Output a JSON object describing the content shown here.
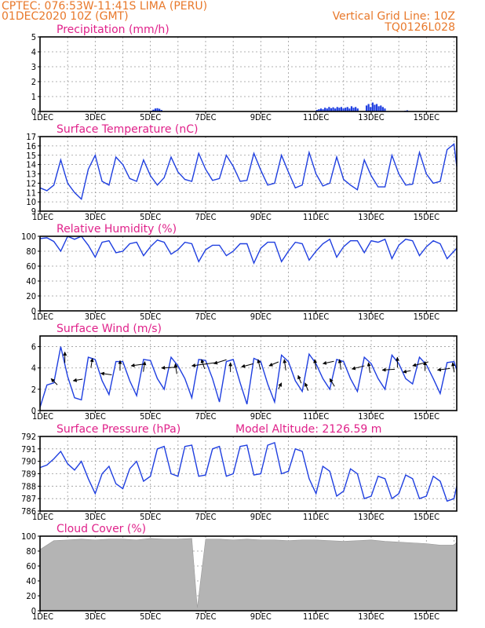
{
  "header": {
    "line1": "CPTEC:   076:53W-11:41S   LIMA (PERU)",
    "line2": "01DEC2020 10Z (GMT)",
    "right1": "Vertical Grid Line: 10Z",
    "right2": "TQ0126L028"
  },
  "colors": {
    "header": "#e8782a",
    "title": "#e0218a",
    "series": "#1f3fe0",
    "cloud": "#b4b4b4"
  },
  "x_ticks": [
    "1DEC",
    "3DEC",
    "5DEC",
    "7DEC",
    "9DEC",
    "11DEC",
    "13DEC",
    "15DEC"
  ],
  "chart_data": [
    {
      "id": "precip",
      "type": "bar",
      "title": "Precipitation (mm/h)",
      "ylim": [
        0,
        5
      ],
      "yticks": [
        0,
        1,
        2,
        3,
        4,
        5
      ],
      "x_start_day": 1,
      "x_end_day": 16.1,
      "events": [
        {
          "day": 5.0,
          "values": [
            0.05,
            0.12,
            0.2,
            0.22,
            0.18,
            0.1
          ]
        },
        {
          "day": 11.0,
          "values": [
            0.1,
            0.15,
            0.2,
            0.15,
            0.25,
            0.2,
            0.3,
            0.22,
            0.28,
            0.2,
            0.3,
            0.25,
            0.3,
            0.2,
            0.25,
            0.3,
            0.2,
            0.35,
            0.25,
            0.3,
            0.2
          ]
        },
        {
          "day": 12.8,
          "values": [
            0.4,
            0.5,
            0.3,
            0.6,
            0.45,
            0.5,
            0.35,
            0.4,
            0.3,
            0.2
          ]
        },
        {
          "day": 14.2,
          "values": [
            0.05,
            0.08
          ]
        }
      ]
    },
    {
      "id": "temp",
      "type": "line",
      "title": "Surface Temperature (nC)",
      "ylim": [
        9,
        17
      ],
      "yticks": [
        9,
        10,
        11,
        12,
        13,
        14,
        15,
        16,
        17
      ],
      "days": [
        1,
        1.25,
        1.5,
        1.75,
        2,
        2.25,
        2.5,
        2.75,
        3,
        3.25,
        3.5,
        3.75,
        4,
        4.25,
        4.5,
        4.75,
        5,
        5.25,
        5.5,
        5.75,
        6,
        6.25,
        6.5,
        6.75,
        7,
        7.25,
        7.5,
        7.75,
        8,
        8.25,
        8.5,
        8.75,
        9,
        9.25,
        9.5,
        9.75,
        10,
        10.25,
        10.5,
        10.75,
        11,
        11.25,
        11.5,
        11.75,
        12,
        12.25,
        12.5,
        12.75,
        13,
        13.25,
        13.5,
        13.75,
        14,
        14.25,
        14.5,
        14.75,
        15,
        15.25,
        15.5,
        15.75,
        16,
        16.1
      ],
      "values": [
        11.5,
        11.2,
        11.8,
        14.5,
        12.0,
        11.0,
        10.3,
        13.5,
        15.0,
        12.2,
        11.8,
        14.8,
        14.0,
        12.5,
        12.2,
        14.5,
        12.8,
        11.8,
        12.6,
        14.8,
        13.2,
        12.4,
        12.2,
        15.2,
        13.5,
        12.3,
        12.5,
        15.0,
        13.8,
        12.2,
        12.3,
        15.2,
        13.4,
        11.8,
        12.0,
        15.0,
        13.2,
        11.5,
        11.8,
        15.3,
        13.0,
        11.7,
        12.0,
        14.8,
        12.4,
        11.8,
        11.3,
        14.5,
        12.8,
        11.6,
        11.6,
        15.0,
        13.0,
        11.8,
        11.9,
        15.3,
        13.0,
        12.0,
        12.2,
        15.6,
        16.2,
        13.8
      ]
    },
    {
      "id": "rh",
      "type": "line",
      "title": "Relative Humidity (%)",
      "ylim": [
        0,
        100
      ],
      "yticks": [
        0,
        20,
        40,
        60,
        80,
        100
      ],
      "days": [
        1,
        1.25,
        1.5,
        1.75,
        2,
        2.25,
        2.5,
        2.75,
        3,
        3.25,
        3.5,
        3.75,
        4,
        4.25,
        4.5,
        4.75,
        5,
        5.25,
        5.5,
        5.75,
        6,
        6.25,
        6.5,
        6.75,
        7,
        7.25,
        7.5,
        7.75,
        8,
        8.25,
        8.5,
        8.75,
        9,
        9.25,
        9.5,
        9.75,
        10,
        10.25,
        10.5,
        10.75,
        11,
        11.25,
        11.5,
        11.75,
        12,
        12.25,
        12.5,
        12.75,
        13,
        13.25,
        13.5,
        13.75,
        14,
        14.25,
        14.5,
        14.75,
        15,
        15.25,
        15.5,
        15.75,
        16,
        16.1
      ],
      "values": [
        97,
        98,
        93,
        80,
        100,
        96,
        100,
        88,
        72,
        92,
        94,
        78,
        80,
        90,
        92,
        74,
        86,
        95,
        92,
        76,
        82,
        92,
        90,
        66,
        82,
        88,
        88,
        74,
        80,
        90,
        90,
        64,
        84,
        92,
        92,
        66,
        80,
        92,
        90,
        68,
        80,
        90,
        96,
        72,
        86,
        94,
        94,
        78,
        94,
        92,
        96,
        70,
        88,
        96,
        94,
        74,
        86,
        94,
        90,
        70,
        80,
        84
      ]
    },
    {
      "id": "wind",
      "type": "line",
      "title": "Surface Wind (m/s)",
      "ylim": [
        0,
        7
      ],
      "yticks": [
        0,
        2,
        4,
        6
      ],
      "days": [
        1,
        1.25,
        1.5,
        1.75,
        2,
        2.25,
        2.5,
        2.75,
        3,
        3.25,
        3.5,
        3.75,
        4,
        4.25,
        4.5,
        4.75,
        5,
        5.25,
        5.5,
        5.75,
        6,
        6.25,
        6.5,
        6.75,
        7,
        7.25,
        7.5,
        7.75,
        8,
        8.25,
        8.5,
        8.75,
        9,
        9.25,
        9.5,
        9.75,
        10,
        10.25,
        10.5,
        10.75,
        11,
        11.25,
        11.5,
        11.75,
        12,
        12.25,
        12.5,
        12.75,
        13,
        13.25,
        13.5,
        13.75,
        14,
        14.25,
        14.5,
        14.75,
        15,
        15.25,
        15.5,
        15.75,
        16,
        16.1
      ],
      "values": [
        0.3,
        2.4,
        2.6,
        6.0,
        3.2,
        1.2,
        1.0,
        5.0,
        4.8,
        2.8,
        1.5,
        4.6,
        4.6,
        2.8,
        1.4,
        4.8,
        4.7,
        3.0,
        2.0,
        5.0,
        4.2,
        3.0,
        1.2,
        4.8,
        4.7,
        3.0,
        0.8,
        4.6,
        4.8,
        2.6,
        0.6,
        4.9,
        4.6,
        2.5,
        0.8,
        5.2,
        4.6,
        2.8,
        1.8,
        5.3,
        4.4,
        3.0,
        2.0,
        4.8,
        4.6,
        3.0,
        1.8,
        5.0,
        4.4,
        3.0,
        2.0,
        5.2,
        4.4,
        3.0,
        2.5,
        5.0,
        4.3,
        3.0,
        1.6,
        4.5,
        4.6,
        3.8
      ],
      "arrows": [
        {
          "day": 1.4,
          "speed": 3.0,
          "dx": 8,
          "dy": -8
        },
        {
          "day": 1.9,
          "speed": 5.5,
          "dx": 0,
          "dy": -14
        },
        {
          "day": 2.2,
          "speed": 2.8,
          "dx": 12,
          "dy": 2
        },
        {
          "day": 2.9,
          "speed": 4.9,
          "dx": -2,
          "dy": -12
        },
        {
          "day": 3.2,
          "speed": 3.5,
          "dx": 14,
          "dy": -2
        },
        {
          "day": 3.9,
          "speed": 4.7,
          "dx": 0,
          "dy": -13
        },
        {
          "day": 4.3,
          "speed": 4.2,
          "dx": 15,
          "dy": 2
        },
        {
          "day": 4.8,
          "speed": 4.6,
          "dx": -2,
          "dy": -13
        },
        {
          "day": 5.4,
          "speed": 4.0,
          "dx": 20,
          "dy": 1
        },
        {
          "day": 5.9,
          "speed": 4.4,
          "dx": 2,
          "dy": -13
        },
        {
          "day": 6.5,
          "speed": 4.2,
          "dx": 30,
          "dy": 4
        },
        {
          "day": 6.85,
          "speed": 4.8,
          "dx": 4,
          "dy": -12
        },
        {
          "day": 7.3,
          "speed": 4.4,
          "dx": 16,
          "dy": 5
        },
        {
          "day": 7.9,
          "speed": 4.5,
          "dx": 0,
          "dy": -12
        },
        {
          "day": 8.3,
          "speed": 4.1,
          "dx": 15,
          "dy": 4
        },
        {
          "day": 8.9,
          "speed": 4.8,
          "dx": 3,
          "dy": -13
        },
        {
          "day": 9.3,
          "speed": 4.2,
          "dx": 12,
          "dy": 5
        },
        {
          "day": 9.75,
          "speed": 2.6,
          "dx": -4,
          "dy": -8
        },
        {
          "day": 9.85,
          "speed": 4.8,
          "dx": 2,
          "dy": -14
        },
        {
          "day": 10.35,
          "speed": 3.3,
          "dx": 4,
          "dy": -10
        },
        {
          "day": 10.6,
          "speed": 2.6,
          "dx": 4,
          "dy": -10
        },
        {
          "day": 10.95,
          "speed": 4.8,
          "dx": 2,
          "dy": -13
        },
        {
          "day": 11.25,
          "speed": 4.4,
          "dx": 14,
          "dy": 3
        },
        {
          "day": 11.5,
          "speed": 3.0,
          "dx": 6,
          "dy": -10
        },
        {
          "day": 11.85,
          "speed": 4.8,
          "dx": 2,
          "dy": -13
        },
        {
          "day": 12.3,
          "speed": 3.9,
          "dx": 16,
          "dy": 4
        },
        {
          "day": 12.9,
          "speed": 4.5,
          "dx": 2,
          "dy": -13
        },
        {
          "day": 13.4,
          "speed": 3.8,
          "dx": 16,
          "dy": 1
        },
        {
          "day": 13.95,
          "speed": 5.0,
          "dx": 0,
          "dy": -13
        },
        {
          "day": 14.15,
          "speed": 3.6,
          "dx": 10,
          "dy": 2
        },
        {
          "day": 14.5,
          "speed": 4.2,
          "dx": 20,
          "dy": 5
        },
        {
          "day": 14.95,
          "speed": 4.6,
          "dx": 0,
          "dy": -12
        },
        {
          "day": 15.4,
          "speed": 3.8,
          "dx": 16,
          "dy": 2
        },
        {
          "day": 15.95,
          "speed": 4.5,
          "dx": 2,
          "dy": -12
        }
      ]
    },
    {
      "id": "pressure",
      "type": "line",
      "title": "Surface Pressure (hPa)",
      "annotation": "Model Altitude: 2126.59 m",
      "ylim": [
        786,
        792
      ],
      "yticks": [
        786,
        787,
        788,
        789,
        790,
        791,
        792
      ],
      "days": [
        1,
        1.25,
        1.5,
        1.75,
        2,
        2.25,
        2.5,
        2.75,
        3,
        3.25,
        3.5,
        3.75,
        4,
        4.25,
        4.5,
        4.75,
        5,
        5.25,
        5.5,
        5.75,
        6,
        6.25,
        6.5,
        6.75,
        7,
        7.25,
        7.5,
        7.75,
        8,
        8.25,
        8.5,
        8.75,
        9,
        9.25,
        9.5,
        9.75,
        10,
        10.25,
        10.5,
        10.75,
        11,
        11.25,
        11.5,
        11.75,
        12,
        12.25,
        12.5,
        12.75,
        13,
        13.25,
        13.5,
        13.75,
        14,
        14.25,
        14.5,
        14.75,
        15,
        15.25,
        15.5,
        15.75,
        16,
        16.1
      ],
      "values": [
        789.5,
        789.7,
        790.2,
        790.8,
        789.8,
        789.3,
        790.0,
        788.6,
        787.4,
        789.0,
        789.6,
        788.2,
        787.8,
        789.4,
        790.0,
        788.4,
        788.8,
        791.0,
        791.2,
        789.0,
        788.8,
        791.2,
        791.3,
        788.8,
        788.9,
        791.0,
        791.2,
        788.8,
        789.0,
        791.2,
        791.3,
        788.9,
        789.0,
        791.3,
        791.5,
        789.0,
        789.2,
        791.0,
        790.8,
        788.6,
        787.4,
        789.6,
        789.2,
        787.2,
        787.6,
        789.4,
        789.0,
        787.0,
        787.2,
        788.8,
        788.6,
        787.0,
        787.4,
        788.9,
        788.6,
        787.0,
        787.2,
        788.8,
        788.4,
        786.8,
        787.0,
        788.0
      ]
    },
    {
      "id": "cloud",
      "type": "area",
      "title": "Cloud Cover (%)",
      "ylim": [
        0,
        100
      ],
      "yticks": [
        0,
        20,
        40,
        60,
        80,
        100
      ],
      "days": [
        1,
        1.5,
        2,
        2.5,
        3,
        3.5,
        4,
        4.5,
        5,
        5.5,
        6,
        6.5,
        6.7,
        7,
        7.5,
        8,
        8.5,
        9,
        9.5,
        10,
        10.5,
        11,
        11.5,
        12,
        12.5,
        13,
        13.5,
        14,
        14.5,
        15,
        15.5,
        16,
        16.1
      ],
      "values": [
        82,
        94,
        95,
        96,
        95,
        96,
        96,
        95,
        97,
        96,
        96,
        97,
        4,
        96,
        96,
        95,
        96,
        95,
        95,
        94,
        95,
        95,
        94,
        93,
        94,
        95,
        93,
        92,
        91,
        90,
        88,
        88,
        92
      ]
    }
  ]
}
